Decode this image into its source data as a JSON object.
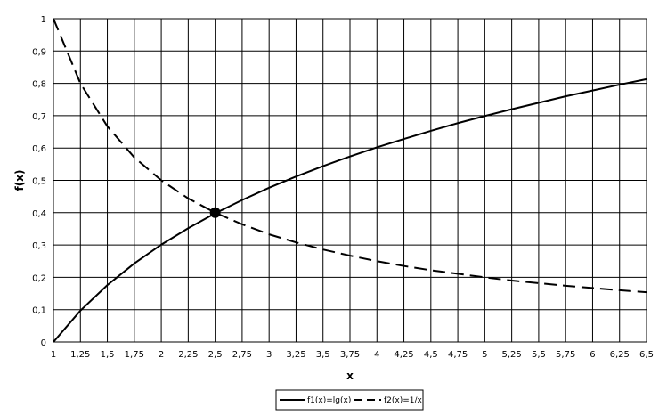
{
  "chart_data": {
    "type": "line",
    "title": "",
    "xlabel": "x",
    "ylabel": "f(x)",
    "xlim": [
      1,
      6.5
    ],
    "ylim": [
      0,
      1
    ],
    "grid": true,
    "legend_position": "bottom",
    "x_ticks": [
      "1",
      "1,25",
      "1,5",
      "1,75",
      "2",
      "2,25",
      "2,5",
      "2,75",
      "3",
      "3,25",
      "3,5",
      "3,75",
      "4",
      "4,25",
      "4,5",
      "4,75",
      "5",
      "5,25",
      "5,5",
      "5,75",
      "6",
      "6,25",
      "6,5"
    ],
    "y_ticks": [
      "0",
      "0,1",
      "0,2",
      "0,3",
      "0,4",
      "0,5",
      "0,6",
      "0,7",
      "0,8",
      "0,9",
      "1"
    ],
    "x": [
      1,
      1.25,
      1.5,
      1.75,
      2,
      2.25,
      2.5,
      2.75,
      3,
      3.25,
      3.5,
      3.75,
      4,
      4.25,
      4.5,
      4.75,
      5,
      5.25,
      5.5,
      5.75,
      6,
      6.25,
      6.5
    ],
    "series": [
      {
        "name": "f1(x)=lg(x)",
        "style": "solid",
        "color": "#000000",
        "values": [
          0,
          0.097,
          0.176,
          0.243,
          0.301,
          0.352,
          0.398,
          0.439,
          0.477,
          0.512,
          0.544,
          0.574,
          0.602,
          0.628,
          0.653,
          0.677,
          0.699,
          0.72,
          0.74,
          0.76,
          0.778,
          0.796,
          0.813
        ]
      },
      {
        "name": "f2(x)=1/x",
        "style": "dashed",
        "color": "#000000",
        "values": [
          1,
          0.8,
          0.667,
          0.571,
          0.5,
          0.444,
          0.4,
          0.364,
          0.333,
          0.308,
          0.286,
          0.267,
          0.25,
          0.235,
          0.222,
          0.211,
          0.2,
          0.19,
          0.182,
          0.174,
          0.167,
          0.16,
          0.154
        ]
      }
    ],
    "intersection": {
      "x": 2.5,
      "y": 0.4
    }
  }
}
